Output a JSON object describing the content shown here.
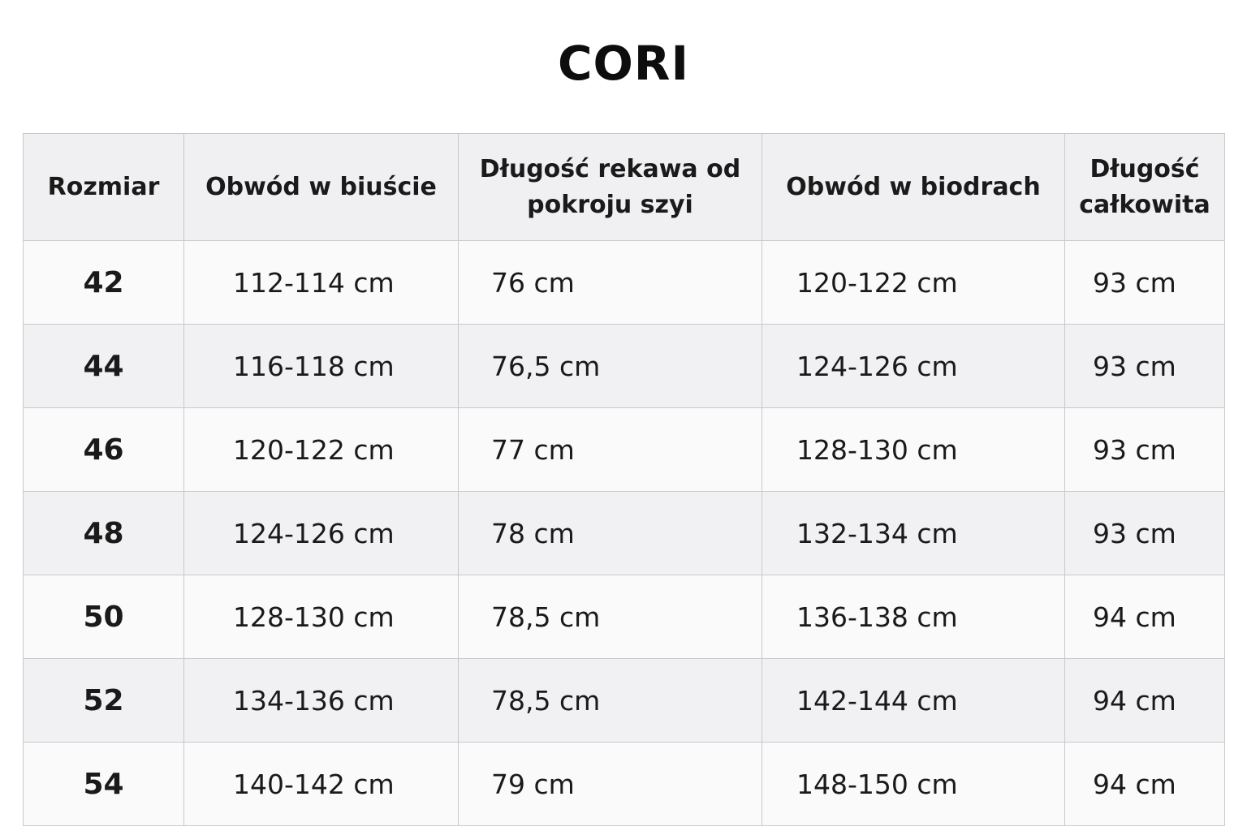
{
  "title": "CORI",
  "table": {
    "headers": [
      "Rozmiar",
      "Obwód w biuście",
      "Długość rekawa od pokroju szyi",
      "Obwód w biodrach",
      "Długość całkowita"
    ],
    "rows": [
      [
        "42",
        "112-114 cm",
        "76 cm",
        "120-122 cm",
        "93 cm"
      ],
      [
        "44",
        "116-118 cm",
        "76,5 cm",
        "124-126 cm",
        "93 cm"
      ],
      [
        "46",
        "120-122 cm",
        "77 cm",
        "128-130 cm",
        "93 cm"
      ],
      [
        "48",
        "124-126 cm",
        "78 cm",
        "132-134 cm",
        "93 cm"
      ],
      [
        "50",
        "128-130 cm",
        "78,5 cm",
        "136-138 cm",
        "94 cm"
      ],
      [
        "52",
        "134-136 cm",
        "78,5 cm",
        "142-144 cm",
        "94 cm"
      ],
      [
        "54",
        "140-142 cm",
        "79 cm",
        "148-150 cm",
        "94 cm"
      ]
    ]
  }
}
